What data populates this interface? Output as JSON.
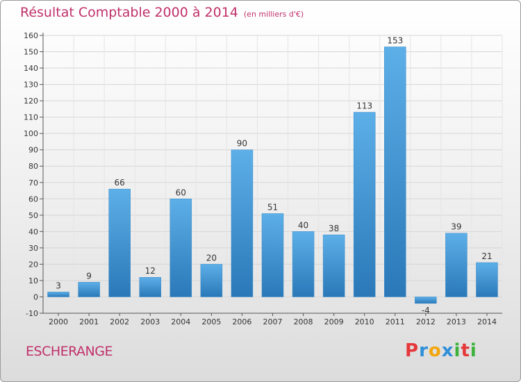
{
  "chart_data": {
    "type": "bar",
    "title": "Résultat Comptable 2000 à 2014",
    "subtitle": "(en milliers d'€)",
    "categories": [
      "2000",
      "2001",
      "2002",
      "2003",
      "2004",
      "2005",
      "2006",
      "2007",
      "2008",
      "2009",
      "2010",
      "2011",
      "2012",
      "2013",
      "2014"
    ],
    "values": [
      3,
      9,
      66,
      12,
      60,
      20,
      90,
      51,
      40,
      38,
      113,
      153,
      -4,
      39,
      21
    ],
    "yticks": [
      -10,
      0,
      10,
      20,
      30,
      40,
      50,
      60,
      70,
      80,
      90,
      100,
      110,
      120,
      130,
      140,
      150,
      160
    ],
    "ylim": [
      -10,
      160
    ],
    "xlabel": "",
    "ylabel": "",
    "grid": true
  },
  "footer": {
    "commune": "ESCHERANGE",
    "logo_letters": [
      "P",
      "r",
      "o",
      "x",
      "i",
      "t",
      "i"
    ]
  },
  "colors": {
    "bar_top": "#5dafe8",
    "bar_bottom": "#2a78b8",
    "title": "#c0306a",
    "grid": "#d5d5d5",
    "logo": [
      "#e5383b",
      "#2f8fd8",
      "#f2a60c",
      "#2f8fd8",
      "#3cb13c",
      "#e5383b",
      "#3cb13c"
    ]
  }
}
